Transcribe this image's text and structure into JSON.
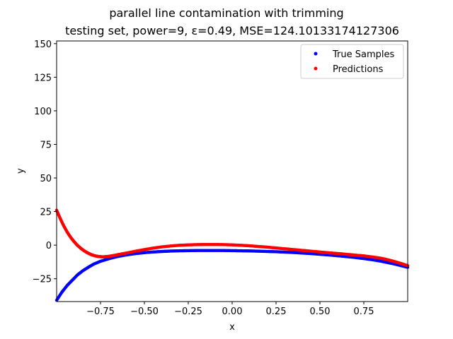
{
  "chart_data": {
    "type": "scatter",
    "title": "parallel line contamination with trimming",
    "subtitle": "testing set, power=9, ε=0.49, MSE=124.10133174127306",
    "xlabel": "x",
    "ylabel": "y",
    "xlim": [
      -1.0,
      1.0
    ],
    "ylim": [
      -42,
      152
    ],
    "xticks": [
      -0.75,
      -0.5,
      -0.25,
      0.0,
      0.25,
      0.5,
      0.75
    ],
    "xtick_labels": [
      "−0.75",
      "−0.50",
      "−0.25",
      "0.00",
      "0.25",
      "0.50",
      "0.75"
    ],
    "yticks": [
      -25,
      0,
      25,
      50,
      75,
      100,
      125,
      150
    ],
    "ytick_labels": [
      "−25",
      "0",
      "25",
      "50",
      "75",
      "100",
      "125",
      "150"
    ],
    "grid": false,
    "legend_position": "top-right",
    "series": [
      {
        "name": "True Samples",
        "color": "#0000ff",
        "marker": "dot",
        "x": [
          -1.0,
          -0.97,
          -0.94,
          -0.91,
          -0.88,
          -0.85,
          -0.82,
          -0.79,
          -0.75,
          -0.7,
          -0.65,
          -0.6,
          -0.55,
          -0.5,
          -0.45,
          -0.4,
          -0.35,
          -0.3,
          -0.25,
          -0.2,
          -0.15,
          -0.1,
          -0.05,
          0.0,
          0.05,
          0.1,
          0.15,
          0.2,
          0.25,
          0.3,
          0.35,
          0.4,
          0.45,
          0.5,
          0.55,
          0.6,
          0.65,
          0.7,
          0.75,
          0.8,
          0.85,
          0.88,
          0.91,
          0.94,
          0.97,
          1.0
        ],
        "y": [
          -41,
          -35,
          -30,
          -26,
          -22,
          -19,
          -16.5,
          -14.2,
          -12,
          -10,
          -8.4,
          -7.2,
          -6.3,
          -5.6,
          -5.1,
          -4.7,
          -4.4,
          -4.2,
          -4.1,
          -4.0,
          -4.0,
          -4.0,
          -4.0,
          -4.1,
          -4.2,
          -4.3,
          -4.5,
          -4.7,
          -4.9,
          -5.2,
          -5.5,
          -5.9,
          -6.3,
          -6.8,
          -7.3,
          -7.9,
          -8.5,
          -9.2,
          -10,
          -10.9,
          -12,
          -12.8,
          -13.6,
          -14.5,
          -15.5,
          -16.5
        ]
      },
      {
        "name": "Predictions",
        "color": "#ff0000",
        "marker": "dot",
        "x": [
          -1.0,
          -0.98,
          -0.96,
          -0.94,
          -0.92,
          -0.9,
          -0.88,
          -0.86,
          -0.84,
          -0.82,
          -0.8,
          -0.78,
          -0.76,
          -0.74,
          -0.72,
          -0.7,
          -0.67,
          -0.64,
          -0.6,
          -0.55,
          -0.5,
          -0.45,
          -0.4,
          -0.35,
          -0.3,
          -0.25,
          -0.2,
          -0.15,
          -0.1,
          -0.05,
          0.0,
          0.05,
          0.1,
          0.15,
          0.2,
          0.25,
          0.3,
          0.35,
          0.4,
          0.45,
          0.5,
          0.55,
          0.6,
          0.65,
          0.7,
          0.75,
          0.8,
          0.85,
          0.88,
          0.91,
          0.94,
          0.97,
          1.0
        ],
        "y": [
          26,
          20,
          14.5,
          9.8,
          5.8,
          2.5,
          -0.3,
          -2.6,
          -4.5,
          -6.0,
          -7.2,
          -8.0,
          -8.5,
          -8.7,
          -8.6,
          -8.3,
          -7.6,
          -6.8,
          -5.8,
          -4.5,
          -3.3,
          -2.2,
          -1.3,
          -0.6,
          -0.1,
          0.2,
          0.4,
          0.5,
          0.5,
          0.4,
          0.2,
          -0.1,
          -0.5,
          -1.0,
          -1.5,
          -2.1,
          -2.7,
          -3.3,
          -3.9,
          -4.5,
          -5.1,
          -5.7,
          -6.2,
          -6.8,
          -7.4,
          -8.0,
          -8.8,
          -9.8,
          -10.7,
          -11.7,
          -12.8,
          -14.0,
          -15.3
        ]
      }
    ]
  }
}
